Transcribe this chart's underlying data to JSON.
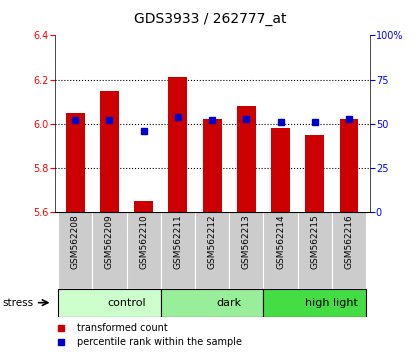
{
  "title": "GDS3933 / 262777_at",
  "samples": [
    "GSM562208",
    "GSM562209",
    "GSM562210",
    "GSM562211",
    "GSM562212",
    "GSM562213",
    "GSM562214",
    "GSM562215",
    "GSM562216"
  ],
  "transformed_counts": [
    6.05,
    6.15,
    5.65,
    6.21,
    6.02,
    6.08,
    5.98,
    5.95,
    6.02
  ],
  "percentile_ranks": [
    52,
    52,
    46,
    54,
    52,
    53,
    51,
    51,
    53
  ],
  "groups": [
    {
      "label": "control",
      "start": 0,
      "end": 3,
      "color": "#ccffcc"
    },
    {
      "label": "dark",
      "start": 3,
      "end": 6,
      "color": "#99ee99"
    },
    {
      "label": "high light",
      "start": 6,
      "end": 9,
      "color": "#44dd44"
    }
  ],
  "ylim_left": [
    5.6,
    6.4
  ],
  "ylim_right": [
    0,
    100
  ],
  "yticks_left": [
    5.6,
    5.8,
    6.0,
    6.2,
    6.4
  ],
  "yticks_right": [
    0,
    25,
    50,
    75,
    100
  ],
  "ytick_labels_right": [
    "0",
    "25",
    "50",
    "75",
    "100%"
  ],
  "bar_color": "#cc0000",
  "dot_color": "#0000cc",
  "bar_width": 0.55,
  "baseline": 5.6,
  "label_area_color": "#cccccc",
  "stress_label": "stress",
  "legend_items": [
    {
      "label": "transformed count",
      "color": "#cc0000"
    },
    {
      "label": "percentile rank within the sample",
      "color": "#0000cc"
    }
  ],
  "grid_yticks": [
    5.8,
    6.0,
    6.2
  ]
}
